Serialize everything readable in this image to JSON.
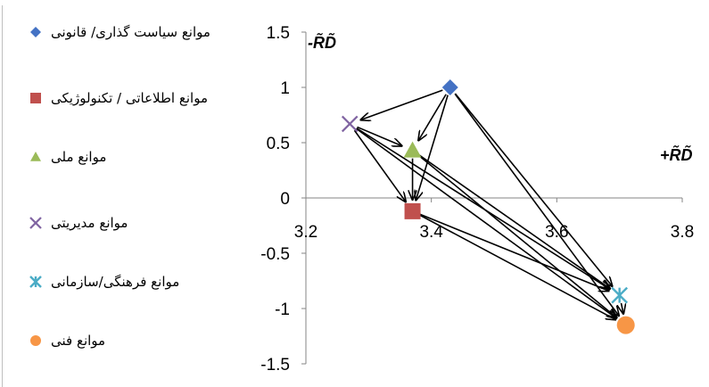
{
  "chart_data": {
    "type": "scatter",
    "title": "",
    "xlabel": "+R̃D̃",
    "ylabel": "-R̃D̃",
    "xlim": [
      3.2,
      3.8
    ],
    "ylim": [
      -1.5,
      1.5
    ],
    "xticks": [
      "3.2",
      "3.4",
      "3.6",
      "3.8"
    ],
    "yticks": [
      "1.5",
      "1",
      "0.5",
      "0",
      "-0.5",
      "-1",
      "-1.5"
    ],
    "legend_position": "left",
    "series": [
      {
        "key": "policy",
        "name": "موانع سیاست گذاری/ قانونی",
        "marker": "diamond",
        "color": "#4472c4",
        "x": 3.43,
        "y": 1.0
      },
      {
        "key": "info",
        "name": "موانع اطلاعاتی / تکنولوژیکی",
        "marker": "square",
        "color": "#c0504d",
        "x": 3.37,
        "y": -0.12
      },
      {
        "key": "national",
        "name": "موانع ملی",
        "marker": "triangle",
        "color": "#9bbb59",
        "x": 3.37,
        "y": 0.43
      },
      {
        "key": "management",
        "name": "موانع مدیریتی",
        "marker": "x",
        "color": "#8064a2",
        "x": 3.27,
        "y": 0.67
      },
      {
        "key": "cultural",
        "name": "موانع فرهنگی/سازمانی",
        "marker": "star",
        "color": "#4bacc6",
        "x": 3.7,
        "y": -0.88
      },
      {
        "key": "technical",
        "name": "موانع فنی",
        "marker": "circle",
        "color": "#f79646",
        "x": 3.71,
        "y": -1.15
      }
    ],
    "arrows": [
      [
        "policy",
        "management"
      ],
      [
        "policy",
        "national"
      ],
      [
        "policy",
        "info"
      ],
      [
        "policy",
        "cultural"
      ],
      [
        "policy",
        "technical"
      ],
      [
        "management",
        "national"
      ],
      [
        "management",
        "info"
      ],
      [
        "management",
        "cultural"
      ],
      [
        "management",
        "technical"
      ],
      [
        "national",
        "info"
      ],
      [
        "national",
        "cultural"
      ],
      [
        "national",
        "technical"
      ],
      [
        "info",
        "cultural"
      ],
      [
        "info",
        "technical"
      ],
      [
        "cultural",
        "technical"
      ]
    ],
    "grid": false
  }
}
